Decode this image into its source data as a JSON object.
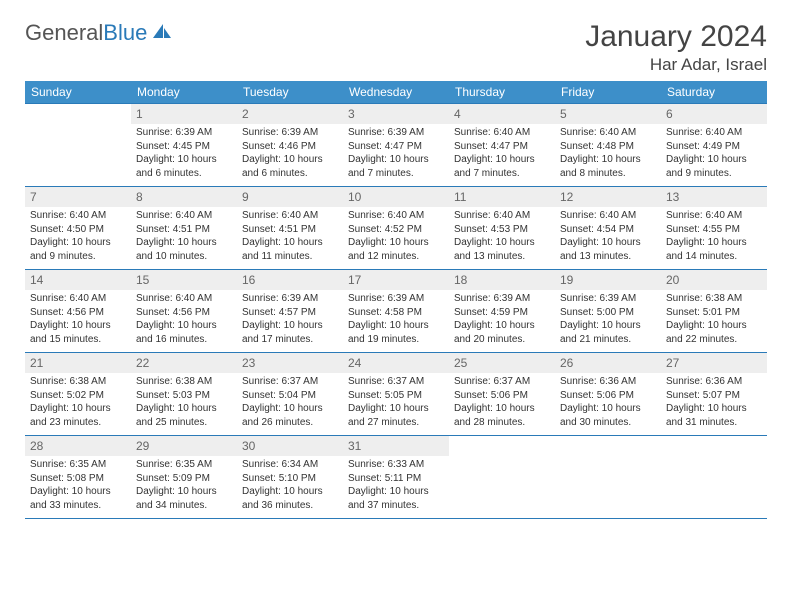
{
  "logo": {
    "text1": "General",
    "text2": "Blue"
  },
  "title": "January 2024",
  "location": "Har Adar, Israel",
  "header_bg": "#3d8fc9",
  "border_color": "#2a7ab8",
  "daynum_bg": "#eeeeee",
  "daysOfWeek": [
    "Sunday",
    "Monday",
    "Tuesday",
    "Wednesday",
    "Thursday",
    "Friday",
    "Saturday"
  ],
  "weeks": [
    [
      {
        "n": "",
        "lines": [
          "",
          "",
          "",
          ""
        ]
      },
      {
        "n": "1",
        "lines": [
          "Sunrise: 6:39 AM",
          "Sunset: 4:45 PM",
          "Daylight: 10 hours",
          "and 6 minutes."
        ]
      },
      {
        "n": "2",
        "lines": [
          "Sunrise: 6:39 AM",
          "Sunset: 4:46 PM",
          "Daylight: 10 hours",
          "and 6 minutes."
        ]
      },
      {
        "n": "3",
        "lines": [
          "Sunrise: 6:39 AM",
          "Sunset: 4:47 PM",
          "Daylight: 10 hours",
          "and 7 minutes."
        ]
      },
      {
        "n": "4",
        "lines": [
          "Sunrise: 6:40 AM",
          "Sunset: 4:47 PM",
          "Daylight: 10 hours",
          "and 7 minutes."
        ]
      },
      {
        "n": "5",
        "lines": [
          "Sunrise: 6:40 AM",
          "Sunset: 4:48 PM",
          "Daylight: 10 hours",
          "and 8 minutes."
        ]
      },
      {
        "n": "6",
        "lines": [
          "Sunrise: 6:40 AM",
          "Sunset: 4:49 PM",
          "Daylight: 10 hours",
          "and 9 minutes."
        ]
      }
    ],
    [
      {
        "n": "7",
        "lines": [
          "Sunrise: 6:40 AM",
          "Sunset: 4:50 PM",
          "Daylight: 10 hours",
          "and 9 minutes."
        ]
      },
      {
        "n": "8",
        "lines": [
          "Sunrise: 6:40 AM",
          "Sunset: 4:51 PM",
          "Daylight: 10 hours",
          "and 10 minutes."
        ]
      },
      {
        "n": "9",
        "lines": [
          "Sunrise: 6:40 AM",
          "Sunset: 4:51 PM",
          "Daylight: 10 hours",
          "and 11 minutes."
        ]
      },
      {
        "n": "10",
        "lines": [
          "Sunrise: 6:40 AM",
          "Sunset: 4:52 PM",
          "Daylight: 10 hours",
          "and 12 minutes."
        ]
      },
      {
        "n": "11",
        "lines": [
          "Sunrise: 6:40 AM",
          "Sunset: 4:53 PM",
          "Daylight: 10 hours",
          "and 13 minutes."
        ]
      },
      {
        "n": "12",
        "lines": [
          "Sunrise: 6:40 AM",
          "Sunset: 4:54 PM",
          "Daylight: 10 hours",
          "and 13 minutes."
        ]
      },
      {
        "n": "13",
        "lines": [
          "Sunrise: 6:40 AM",
          "Sunset: 4:55 PM",
          "Daylight: 10 hours",
          "and 14 minutes."
        ]
      }
    ],
    [
      {
        "n": "14",
        "lines": [
          "Sunrise: 6:40 AM",
          "Sunset: 4:56 PM",
          "Daylight: 10 hours",
          "and 15 minutes."
        ]
      },
      {
        "n": "15",
        "lines": [
          "Sunrise: 6:40 AM",
          "Sunset: 4:56 PM",
          "Daylight: 10 hours",
          "and 16 minutes."
        ]
      },
      {
        "n": "16",
        "lines": [
          "Sunrise: 6:39 AM",
          "Sunset: 4:57 PM",
          "Daylight: 10 hours",
          "and 17 minutes."
        ]
      },
      {
        "n": "17",
        "lines": [
          "Sunrise: 6:39 AM",
          "Sunset: 4:58 PM",
          "Daylight: 10 hours",
          "and 19 minutes."
        ]
      },
      {
        "n": "18",
        "lines": [
          "Sunrise: 6:39 AM",
          "Sunset: 4:59 PM",
          "Daylight: 10 hours",
          "and 20 minutes."
        ]
      },
      {
        "n": "19",
        "lines": [
          "Sunrise: 6:39 AM",
          "Sunset: 5:00 PM",
          "Daylight: 10 hours",
          "and 21 minutes."
        ]
      },
      {
        "n": "20",
        "lines": [
          "Sunrise: 6:38 AM",
          "Sunset: 5:01 PM",
          "Daylight: 10 hours",
          "and 22 minutes."
        ]
      }
    ],
    [
      {
        "n": "21",
        "lines": [
          "Sunrise: 6:38 AM",
          "Sunset: 5:02 PM",
          "Daylight: 10 hours",
          "and 23 minutes."
        ]
      },
      {
        "n": "22",
        "lines": [
          "Sunrise: 6:38 AM",
          "Sunset: 5:03 PM",
          "Daylight: 10 hours",
          "and 25 minutes."
        ]
      },
      {
        "n": "23",
        "lines": [
          "Sunrise: 6:37 AM",
          "Sunset: 5:04 PM",
          "Daylight: 10 hours",
          "and 26 minutes."
        ]
      },
      {
        "n": "24",
        "lines": [
          "Sunrise: 6:37 AM",
          "Sunset: 5:05 PM",
          "Daylight: 10 hours",
          "and 27 minutes."
        ]
      },
      {
        "n": "25",
        "lines": [
          "Sunrise: 6:37 AM",
          "Sunset: 5:06 PM",
          "Daylight: 10 hours",
          "and 28 minutes."
        ]
      },
      {
        "n": "26",
        "lines": [
          "Sunrise: 6:36 AM",
          "Sunset: 5:06 PM",
          "Daylight: 10 hours",
          "and 30 minutes."
        ]
      },
      {
        "n": "27",
        "lines": [
          "Sunrise: 6:36 AM",
          "Sunset: 5:07 PM",
          "Daylight: 10 hours",
          "and 31 minutes."
        ]
      }
    ],
    [
      {
        "n": "28",
        "lines": [
          "Sunrise: 6:35 AM",
          "Sunset: 5:08 PM",
          "Daylight: 10 hours",
          "and 33 minutes."
        ]
      },
      {
        "n": "29",
        "lines": [
          "Sunrise: 6:35 AM",
          "Sunset: 5:09 PM",
          "Daylight: 10 hours",
          "and 34 minutes."
        ]
      },
      {
        "n": "30",
        "lines": [
          "Sunrise: 6:34 AM",
          "Sunset: 5:10 PM",
          "Daylight: 10 hours",
          "and 36 minutes."
        ]
      },
      {
        "n": "31",
        "lines": [
          "Sunrise: 6:33 AM",
          "Sunset: 5:11 PM",
          "Daylight: 10 hours",
          "and 37 minutes."
        ]
      },
      {
        "n": "",
        "lines": [
          "",
          "",
          "",
          ""
        ]
      },
      {
        "n": "",
        "lines": [
          "",
          "",
          "",
          ""
        ]
      },
      {
        "n": "",
        "lines": [
          "",
          "",
          "",
          ""
        ]
      }
    ]
  ]
}
